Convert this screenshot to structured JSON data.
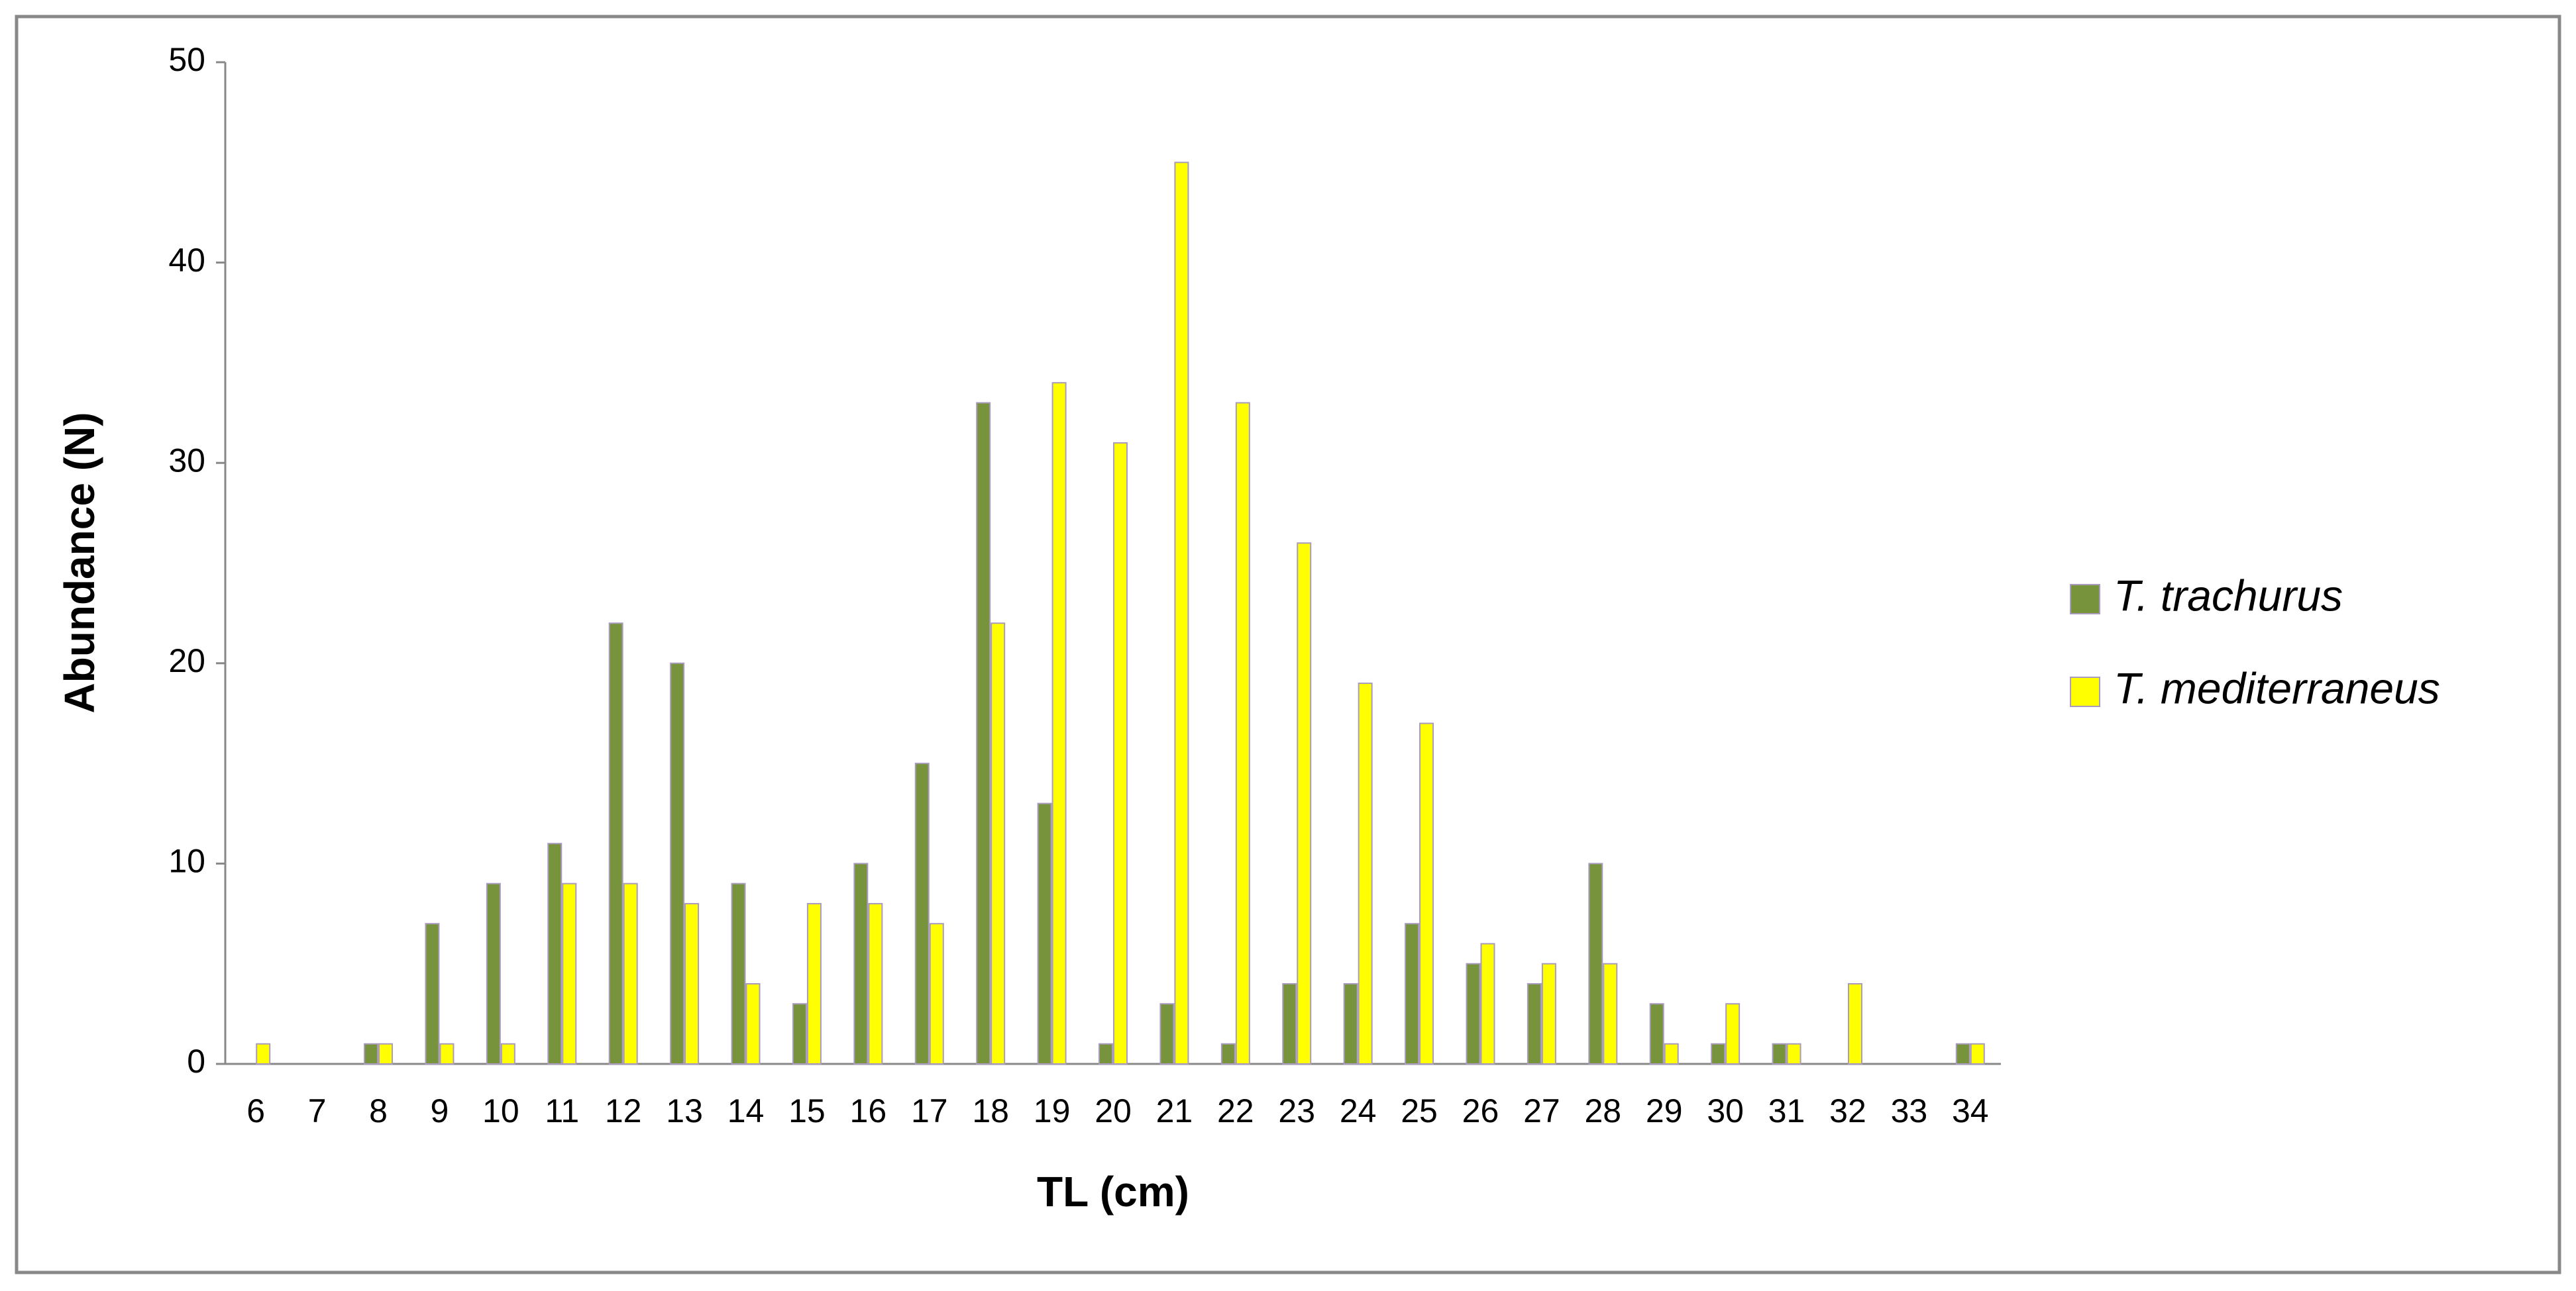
{
  "chart_data": {
    "type": "bar",
    "x_label": "TL (cm)",
    "y_label": "Abundance (N)",
    "categories": [
      "6",
      "7",
      "8",
      "9",
      "10",
      "11",
      "12",
      "13",
      "14",
      "15",
      "16",
      "17",
      "18",
      "19",
      "20",
      "21",
      "22",
      "23",
      "24",
      "25",
      "26",
      "27",
      "28",
      "29",
      "30",
      "31",
      "32",
      "33",
      "34"
    ],
    "series": [
      {
        "name": "T. trachurus",
        "color": "#77933c",
        "values": [
          0,
          0,
          1,
          7,
          9,
          11,
          22,
          20,
          9,
          3,
          10,
          15,
          33,
          13,
          1,
          3,
          1,
          4,
          4,
          7,
          5,
          4,
          10,
          3,
          1,
          1,
          0,
          0,
          1
        ]
      },
      {
        "name": "T. mediterraneus",
        "color": "#ffff00",
        "values": [
          1,
          0,
          1,
          1,
          1,
          9,
          9,
          8,
          4,
          8,
          8,
          7,
          22,
          34,
          31,
          45,
          33,
          26,
          19,
          17,
          6,
          5,
          5,
          1,
          3,
          1,
          4,
          0,
          1
        ]
      }
    ],
    "ylim": [
      0,
      50
    ],
    "yticks": [
      0,
      10,
      20,
      30,
      40,
      50
    ],
    "grid": false,
    "legend": "right"
  }
}
